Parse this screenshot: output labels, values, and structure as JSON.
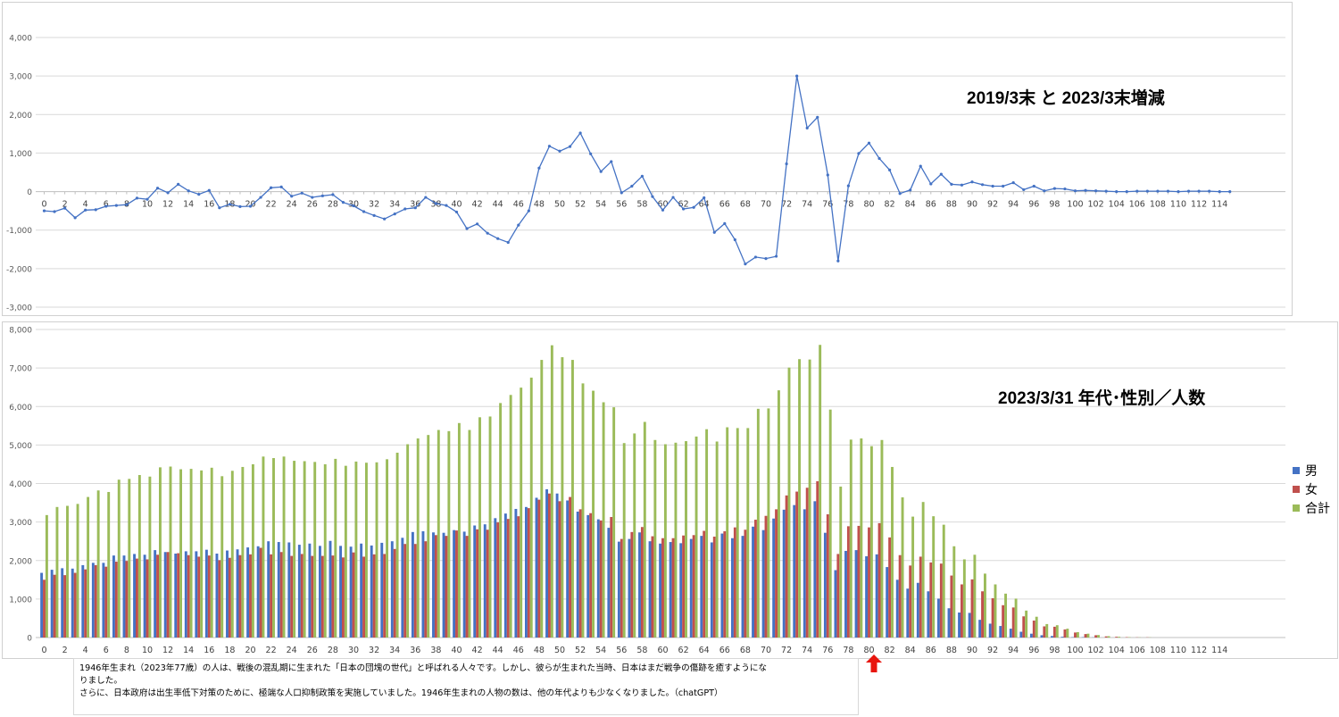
{
  "chart_data": [
    {
      "type": "line",
      "title": "2019/3末 と 2023/3末増減",
      "xlabel": "",
      "ylabel": "",
      "ylim": [
        -3000,
        4000
      ],
      "yticks": [
        "4,000",
        "3,000",
        "2,000",
        "1,000",
        "0",
        "-1,000",
        "-2,000",
        "-3,000"
      ],
      "xtick_step": 2,
      "x_start": 0,
      "x_end": 115,
      "grid": true,
      "line_color": "#4472c4",
      "series": [
        {
          "values": [
            -500,
            -520,
            -430,
            -680,
            -480,
            -470,
            -380,
            -360,
            -340,
            -170,
            -200,
            90,
            -30,
            190,
            20,
            -70,
            30,
            -420,
            -330,
            -390,
            -380,
            -150,
            100,
            120,
            -120,
            -40,
            -150,
            -110,
            -80,
            -280,
            -370,
            -520,
            -620,
            -710,
            -580,
            -450,
            -420,
            -150,
            -310,
            -360,
            -530,
            -960,
            -840,
            -1080,
            -1220,
            -1320,
            -870,
            -500,
            610,
            1180,
            1050,
            1170,
            1520,
            980,
            520,
            780,
            -30,
            140,
            400,
            -130,
            -480,
            -150,
            -450,
            -410,
            -160,
            -1060,
            -830,
            -1250,
            -1880,
            -1700,
            -1740,
            -1680,
            720,
            3000,
            1650,
            1930,
            430,
            -1800,
            150,
            990,
            1260,
            860,
            560,
            -50,
            40,
            660,
            200,
            450,
            190,
            170,
            250,
            180,
            140,
            140,
            230,
            50,
            140,
            20,
            80,
            70,
            20,
            30,
            20,
            10,
            0,
            0,
            10,
            10,
            10,
            10,
            0,
            10,
            10,
            10,
            0,
            0
          ]
        }
      ]
    },
    {
      "type": "bar",
      "title": "2023/3/31 年代･性別／人数",
      "xlabel": "",
      "ylabel": "",
      "ylim": [
        0,
        8000
      ],
      "yticks": [
        "8,000",
        "7,000",
        "6,000",
        "5,000",
        "4,000",
        "3,000",
        "2,000",
        "1,000",
        "0"
      ],
      "xtick_step": 2,
      "x_start": 0,
      "x_end": 115,
      "grid": true,
      "series": [
        {
          "name": "男",
          "color": "#4472c4",
          "values": [
            1680,
            1760,
            1800,
            1790,
            1880,
            1940,
            1940,
            2130,
            2130,
            2170,
            2150,
            2270,
            2220,
            2180,
            2240,
            2240,
            2280,
            2180,
            2260,
            2290,
            2340,
            2370,
            2500,
            2480,
            2470,
            2410,
            2440,
            2380,
            2510,
            2380,
            2360,
            2440,
            2390,
            2460,
            2500,
            2590,
            2740,
            2760,
            2730,
            2720,
            2790,
            2750,
            2910,
            2940,
            3100,
            3220,
            3340,
            3390,
            3630,
            3850,
            3740,
            3560,
            3270,
            3180,
            3070,
            2850,
            2490,
            2560,
            2730,
            2500,
            2440,
            2480,
            2450,
            2560,
            2640,
            2470,
            2700,
            2580,
            2640,
            2880,
            2790,
            3090,
            3320,
            3440,
            3330,
            3540,
            2720,
            1750,
            2250,
            2270,
            2110,
            2160,
            1830,
            1500,
            1270,
            1420,
            1200,
            1010,
            760,
            650,
            640,
            460,
            360,
            300,
            230,
            150,
            100,
            60,
            40,
            20,
            10,
            10,
            5,
            0,
            0,
            0,
            0,
            0,
            0,
            0,
            0,
            0,
            0,
            0,
            0,
            0
          ]
        },
        {
          "name": "女",
          "color": "#c0504d",
          "values": [
            1500,
            1630,
            1620,
            1680,
            1770,
            1880,
            1840,
            1970,
            1990,
            2050,
            2030,
            2150,
            2220,
            2190,
            2140,
            2100,
            2130,
            2010,
            2070,
            2140,
            2160,
            2330,
            2160,
            2220,
            2120,
            2170,
            2120,
            2120,
            2130,
            2080,
            2210,
            2100,
            2160,
            2170,
            2300,
            2430,
            2430,
            2500,
            2660,
            2640,
            2780,
            2640,
            2810,
            2800,
            2990,
            3080,
            3150,
            3360,
            3580,
            3740,
            3540,
            3650,
            3330,
            3230,
            3040,
            3130,
            2560,
            2740,
            2870,
            2630,
            2580,
            2580,
            2650,
            2660,
            2770,
            2620,
            2760,
            2860,
            2800,
            3060,
            3160,
            3330,
            3690,
            3790,
            3890,
            4060,
            3200,
            2170,
            2890,
            2900,
            2860,
            2970,
            2600,
            2140,
            1870,
            2100,
            1950,
            1920,
            1610,
            1380,
            1510,
            1200,
            1020,
            840,
            780,
            550,
            440,
            290,
            280,
            210,
            130,
            90,
            60,
            30,
            20,
            10,
            5,
            5,
            0,
            0,
            0,
            0,
            0,
            0,
            0,
            0
          ]
        },
        {
          "name": "合計",
          "color": "#9bbb59",
          "values": [
            3180,
            3390,
            3420,
            3470,
            3650,
            3820,
            3780,
            4100,
            4120,
            4220,
            4180,
            4420,
            4440,
            4370,
            4380,
            4340,
            4410,
            4190,
            4330,
            4430,
            4500,
            4700,
            4660,
            4700,
            4590,
            4580,
            4560,
            4500,
            4640,
            4460,
            4570,
            4540,
            4550,
            4630,
            4800,
            5020,
            5170,
            5260,
            5390,
            5360,
            5570,
            5390,
            5720,
            5740,
            6090,
            6300,
            6490,
            6750,
            7210,
            7590,
            7280,
            7210,
            6600,
            6410,
            6110,
            5980,
            5050,
            5300,
            5600,
            5130,
            5020,
            5060,
            5100,
            5220,
            5410,
            5090,
            5460,
            5440,
            5440,
            5940,
            5950,
            6420,
            7010,
            7230,
            7220,
            7600,
            5920,
            3920,
            5140,
            5170,
            4970,
            5130,
            4430,
            3640,
            3140,
            3520,
            3150,
            2930,
            2370,
            2030,
            2150,
            1660,
            1380,
            1140,
            1010,
            700,
            540,
            350,
            320,
            230,
            140,
            100,
            65,
            35,
            20,
            10,
            5,
            5,
            0,
            0,
            0,
            0,
            0,
            0,
            0,
            0
          ]
        }
      ]
    }
  ],
  "marker": {
    "label": "",
    "at_age": 77,
    "color": "#e8150e"
  },
  "note": {
    "line1": "1946年生まれ（2023年77歳）の人は、戦後の混乱期に生まれた「日本の団塊の世代」と呼ばれる人々です。しかし、彼らが生まれた当時、日本はまだ戦争の傷跡を癒すようにな",
    "line2": "りました。",
    "line3": "さらに、日本政府は出生率低下対策のために、極端な人口抑制政策を実施していました。1946年生まれの人物の数は、他の年代よりも少なくなりました。（chatGPT）"
  }
}
